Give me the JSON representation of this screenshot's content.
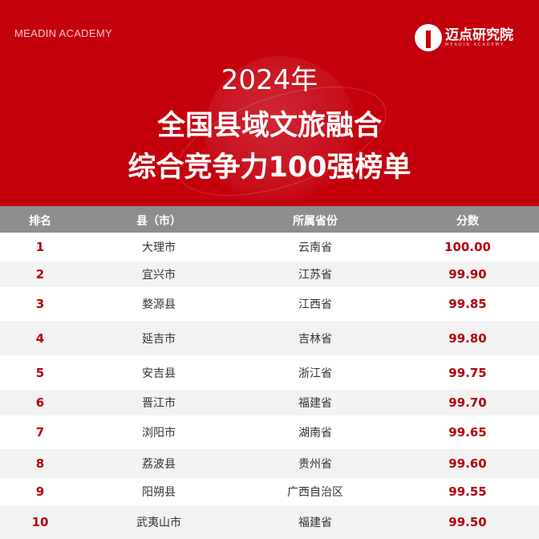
{
  "header": {
    "brand_en": "MEADIN ACADEMY",
    "logo_cn": "迈点研究院",
    "logo_en": "MEADIN ACADEMY",
    "year": "2024年",
    "title_line1": "全国县域文旅融合",
    "title_line2": "综合竞争力100强榜单"
  },
  "colors": {
    "brand_red": "#c4000d",
    "header_gray": "#8e8e8e",
    "score_red": "#b3000c"
  },
  "table": {
    "columns": [
      "排名",
      "县（市）",
      "所属省份",
      "分数"
    ],
    "rows": [
      {
        "rank": "1",
        "county": "大理市",
        "province": "云南省",
        "score": "100.00"
      },
      {
        "rank": "2",
        "county": "宜兴市",
        "province": "江苏省",
        "score": "99.90"
      },
      {
        "rank": "3",
        "county": "婺源县",
        "province": "江西省",
        "score": "99.85"
      },
      {
        "rank": "4",
        "county": "延吉市",
        "province": "吉林省",
        "score": "99.80"
      },
      {
        "rank": "5",
        "county": "安吉县",
        "province": "浙江省",
        "score": "99.75"
      },
      {
        "rank": "6",
        "county": "晋江市",
        "province": "福建省",
        "score": "99.70"
      },
      {
        "rank": "7",
        "county": "浏阳市",
        "province": "湖南省",
        "score": "99.65"
      },
      {
        "rank": "8",
        "county": "荔波县",
        "province": "贵州省",
        "score": "99.60"
      },
      {
        "rank": "9",
        "county": "阳朔县",
        "province": "广西自治区",
        "score": "99.55"
      },
      {
        "rank": "10",
        "county": "武夷山市",
        "province": "福建省",
        "score": "99.50"
      }
    ]
  }
}
